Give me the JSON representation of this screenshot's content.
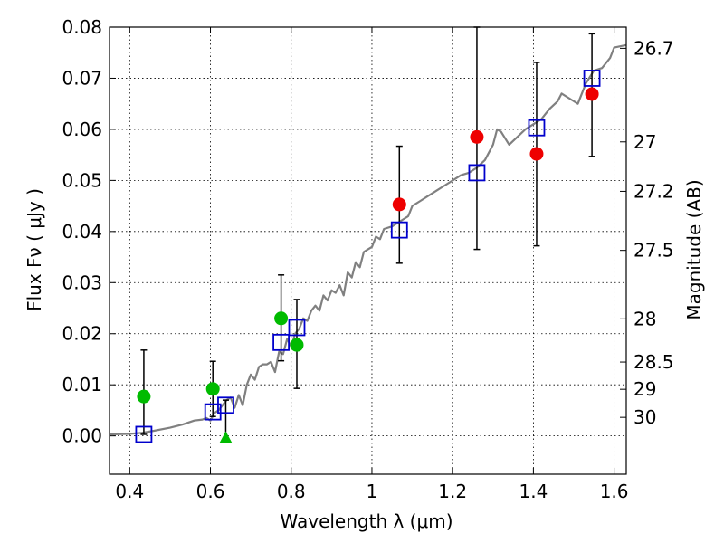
{
  "chart_data": {
    "type": "scatter",
    "xlabel": "Wavelength  λ (μm)",
    "ylabel": "Flux  Fν  ( μJy )",
    "ylabel_right": "Magnitude (AB)",
    "xlim": [
      0.35,
      1.63
    ],
    "ylim": [
      -0.0075,
      0.08
    ],
    "grid": true,
    "x_ticks": [
      0.4,
      0.6,
      0.8,
      1.0,
      1.2,
      1.4,
      1.6
    ],
    "x_tick_labels": [
      "0.4",
      "0.6",
      "0.8",
      "1",
      "1.2",
      "1.4",
      "1.6"
    ],
    "y_ticks": [
      0.0,
      0.01,
      0.02,
      0.03,
      0.04,
      0.05,
      0.06,
      0.07,
      0.08
    ],
    "y_tick_labels": [
      "0.00",
      "0.01",
      "0.02",
      "0.03",
      "0.04",
      "0.05",
      "0.06",
      "0.07",
      "0.08"
    ],
    "right_ticks": [
      {
        "label": "26.7",
        "mag": 26.7
      },
      {
        "label": "27",
        "mag": 27.0
      },
      {
        "label": "27.2",
        "mag": 27.2
      },
      {
        "label": "27.5",
        "mag": 27.5
      },
      {
        "label": "28",
        "mag": 28.0
      },
      {
        "label": "28.5",
        "mag": 28.5
      },
      {
        "label": "29",
        "mag": 29.0
      },
      {
        "label": "30",
        "mag": 30.0
      }
    ],
    "colors": {
      "green": "#00bb00",
      "red": "#ee0000",
      "blue": "#0000cc",
      "model": "#808080",
      "errorbar": "#000000"
    },
    "series": [
      {
        "marker": "circle-green",
        "points": [
          {
            "x": 0.435,
            "y": 0.0077
          },
          {
            "x": 0.606,
            "y": 0.0092
          },
          {
            "x": 0.775,
            "y": 0.023
          },
          {
            "x": 0.814,
            "y": 0.0178
          }
        ]
      },
      {
        "marker": "triangle-green",
        "points": [
          {
            "x": 0.638,
            "y": -0.0005
          }
        ]
      },
      {
        "marker": "circle-red",
        "points": [
          {
            "x": 1.068,
            "y": 0.0453
          },
          {
            "x": 1.26,
            "y": 0.0585
          },
          {
            "x": 1.408,
            "y": 0.0552
          },
          {
            "x": 1.545,
            "y": 0.0669
          }
        ]
      },
      {
        "marker": "square-blue",
        "points": [
          {
            "x": 0.435,
            "y": 0.0003
          },
          {
            "x": 0.606,
            "y": 0.0047
          },
          {
            "x": 0.638,
            "y": 0.006
          },
          {
            "x": 0.775,
            "y": 0.0183
          },
          {
            "x": 0.814,
            "y": 0.0212
          },
          {
            "x": 1.068,
            "y": 0.0403
          },
          {
            "x": 1.26,
            "y": 0.0515
          },
          {
            "x": 1.408,
            "y": 0.0603
          },
          {
            "x": 1.545,
            "y": 0.07
          }
        ]
      }
    ],
    "error_bars": [
      {
        "x": 0.435,
        "low": 0.0003,
        "high": 0.0168
      },
      {
        "x": 0.606,
        "low": 0.0038,
        "high": 0.0146
      },
      {
        "x": 0.638,
        "low": -0.0005,
        "high": 0.007
      },
      {
        "x": 0.775,
        "low": 0.0147,
        "high": 0.0315
      },
      {
        "x": 0.814,
        "low": 0.0093,
        "high": 0.0267
      },
      {
        "x": 1.068,
        "low": 0.0338,
        "high": 0.0567
      },
      {
        "x": 1.26,
        "low": 0.0365,
        "high": 0.08
      },
      {
        "x": 1.408,
        "low": 0.0372,
        "high": 0.0731
      },
      {
        "x": 1.545,
        "low": 0.0547,
        "high": 0.0787
      }
    ],
    "model_spectrum": [
      [
        0.35,
        0.0003
      ],
      [
        0.4,
        0.0004
      ],
      [
        0.43,
        0.0006
      ],
      [
        0.46,
        0.001
      ],
      [
        0.5,
        0.0016
      ],
      [
        0.53,
        0.0022
      ],
      [
        0.56,
        0.003
      ],
      [
        0.58,
        0.0032
      ],
      [
        0.59,
        0.0035
      ],
      [
        0.6,
        0.003
      ],
      [
        0.61,
        0.0045
      ],
      [
        0.62,
        0.005
      ],
      [
        0.64,
        0.007
      ],
      [
        0.65,
        0.0075
      ],
      [
        0.66,
        0.0055
      ],
      [
        0.67,
        0.008
      ],
      [
        0.68,
        0.006
      ],
      [
        0.69,
        0.01
      ],
      [
        0.7,
        0.012
      ],
      [
        0.71,
        0.011
      ],
      [
        0.72,
        0.0135
      ],
      [
        0.73,
        0.014
      ],
      [
        0.74,
        0.014
      ],
      [
        0.75,
        0.0145
      ],
      [
        0.76,
        0.0125
      ],
      [
        0.77,
        0.0165
      ],
      [
        0.78,
        0.016
      ],
      [
        0.79,
        0.019
      ],
      [
        0.8,
        0.0175
      ],
      [
        0.81,
        0.02
      ],
      [
        0.82,
        0.021
      ],
      [
        0.83,
        0.023
      ],
      [
        0.84,
        0.0225
      ],
      [
        0.85,
        0.0245
      ],
      [
        0.86,
        0.0255
      ],
      [
        0.87,
        0.0245
      ],
      [
        0.88,
        0.0275
      ],
      [
        0.89,
        0.0265
      ],
      [
        0.9,
        0.0285
      ],
      [
        0.91,
        0.028
      ],
      [
        0.92,
        0.0295
      ],
      [
        0.93,
        0.0275
      ],
      [
        0.94,
        0.032
      ],
      [
        0.95,
        0.031
      ],
      [
        0.96,
        0.034
      ],
      [
        0.97,
        0.033
      ],
      [
        0.98,
        0.036
      ],
      [
        0.99,
        0.0365
      ],
      [
        1.0,
        0.037
      ],
      [
        1.01,
        0.039
      ],
      [
        1.02,
        0.0385
      ],
      [
        1.03,
        0.0405
      ],
      [
        1.05,
        0.041
      ],
      [
        1.07,
        0.042
      ],
      [
        1.09,
        0.043
      ],
      [
        1.1,
        0.045
      ],
      [
        1.12,
        0.046
      ],
      [
        1.14,
        0.047
      ],
      [
        1.16,
        0.048
      ],
      [
        1.18,
        0.049
      ],
      [
        1.2,
        0.05
      ],
      [
        1.22,
        0.051
      ],
      [
        1.24,
        0.0515
      ],
      [
        1.26,
        0.0525
      ],
      [
        1.28,
        0.054
      ],
      [
        1.3,
        0.057
      ],
      [
        1.31,
        0.06
      ],
      [
        1.32,
        0.0595
      ],
      [
        1.34,
        0.057
      ],
      [
        1.36,
        0.0585
      ],
      [
        1.38,
        0.06
      ],
      [
        1.4,
        0.061
      ],
      [
        1.42,
        0.062
      ],
      [
        1.44,
        0.064
      ],
      [
        1.46,
        0.0655
      ],
      [
        1.47,
        0.067
      ],
      [
        1.49,
        0.066
      ],
      [
        1.51,
        0.065
      ],
      [
        1.53,
        0.069
      ],
      [
        1.55,
        0.0715
      ],
      [
        1.57,
        0.072
      ],
      [
        1.59,
        0.074
      ],
      [
        1.6,
        0.076
      ],
      [
        1.63,
        0.0765
      ]
    ]
  }
}
